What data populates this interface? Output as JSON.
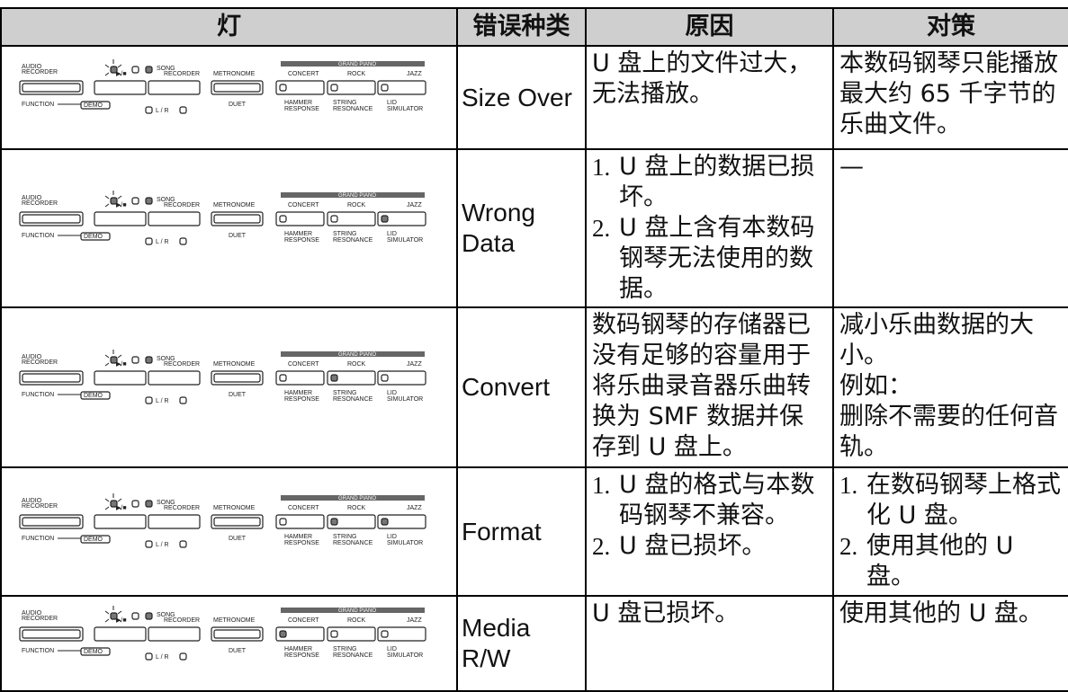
{
  "header": [
    "灯",
    "错误种类",
    "原因",
    "对策"
  ],
  "panel": {
    "audio": "AUDIO",
    "recorder": "RECORDER",
    "function": "FUNCTION",
    "demo": "DEMO",
    "song": "SONG",
    "play_stop": "▶/■",
    "metronome": "METRONOME",
    "duet": "DUET",
    "grand_piano": "GRAND PIANO",
    "concert": "CONCERT",
    "rock": "ROCK",
    "jazz": "JAZZ",
    "hammer": "HAMMER",
    "response": "RESPONSE",
    "string": "STRING",
    "resonance": "RESONANCE",
    "lid": "LID",
    "simulator": "SIMULATOR",
    "lr": "L / R"
  },
  "rows": [
    {
      "error": "Size Over",
      "cause": [
        "U 盘上的文件过大，无法播放。"
      ],
      "action": [
        "本数码钢琴只能播放最大约 65 千字节的乐曲文件。"
      ]
    },
    {
      "error": "Wrong Data",
      "cause_list": [
        {
          "num": "1.",
          "text": "U 盘上的数据已损坏。"
        },
        {
          "num": "2.",
          "text": "U 盘上含有本数码钢琴无法使用的数据。"
        }
      ],
      "action": [
        "—"
      ]
    },
    {
      "error": "Convert",
      "cause": [
        "数码钢琴的存储器已没有足够的容量用于将乐曲录音器乐曲转换为 SMF 数据并保存到 U 盘上。"
      ],
      "action": [
        "减小乐曲数据的大小。",
        "例如：",
        "删除不需要的任何音轨。"
      ]
    },
    {
      "error": "Format",
      "cause_list": [
        {
          "num": "1.",
          "text": "U 盘的格式与本数码钢琴不兼容。"
        },
        {
          "num": "2.",
          "text": "U 盘已损坏。"
        }
      ],
      "action_list": [
        {
          "num": "1.",
          "text": "在数码钢琴上格式化 U 盘。"
        },
        {
          "num": "2.",
          "text": "使用其他的 U 盘。"
        }
      ]
    },
    {
      "error": "Media R/W",
      "cause": [
        "U 盘已损坏。"
      ],
      "action": [
        "使用其他的 U 盘。"
      ]
    }
  ]
}
